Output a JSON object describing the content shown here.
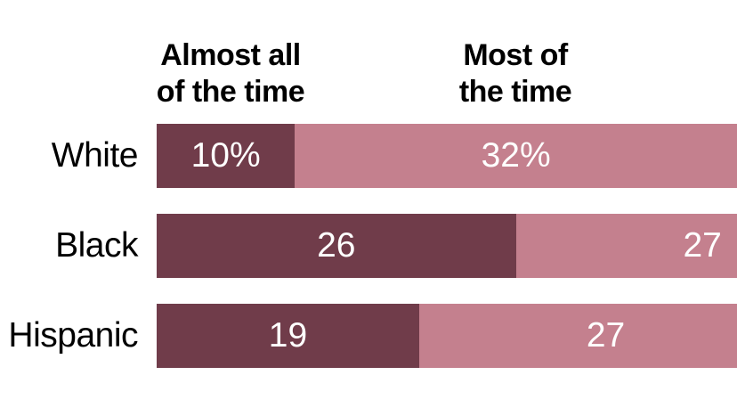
{
  "page": {
    "background_color": "#ffffff",
    "text_color": "#000000"
  },
  "chart_data": {
    "type": "bar",
    "orientation": "horizontal_stacked",
    "title": "",
    "xlabel": "",
    "ylabel": "",
    "grid": false,
    "legend_position": "column-headers-above-first-row",
    "xlim_visible_units": [
      0,
      42
    ],
    "column_headers": [
      {
        "label": "Almost all of the time",
        "line1": "Almost all",
        "line2": "of the time"
      },
      {
        "label": "Most of the time",
        "line1": "Most of",
        "line2": "the time"
      }
    ],
    "categories": [
      "White",
      "Black",
      "Hispanic"
    ],
    "series": [
      {
        "name": "Almost all of the time",
        "color": "#703c4a",
        "values": [
          10,
          26,
          19
        ],
        "value_labels": [
          "10%",
          "26",
          "19"
        ]
      },
      {
        "name": "Most of the time",
        "color": "#c4808e",
        "values": [
          32,
          27,
          27
        ],
        "value_labels": [
          "32%",
          "27",
          "27"
        ]
      }
    ],
    "value_label_color": "#ffffff",
    "value_unit": "%"
  }
}
